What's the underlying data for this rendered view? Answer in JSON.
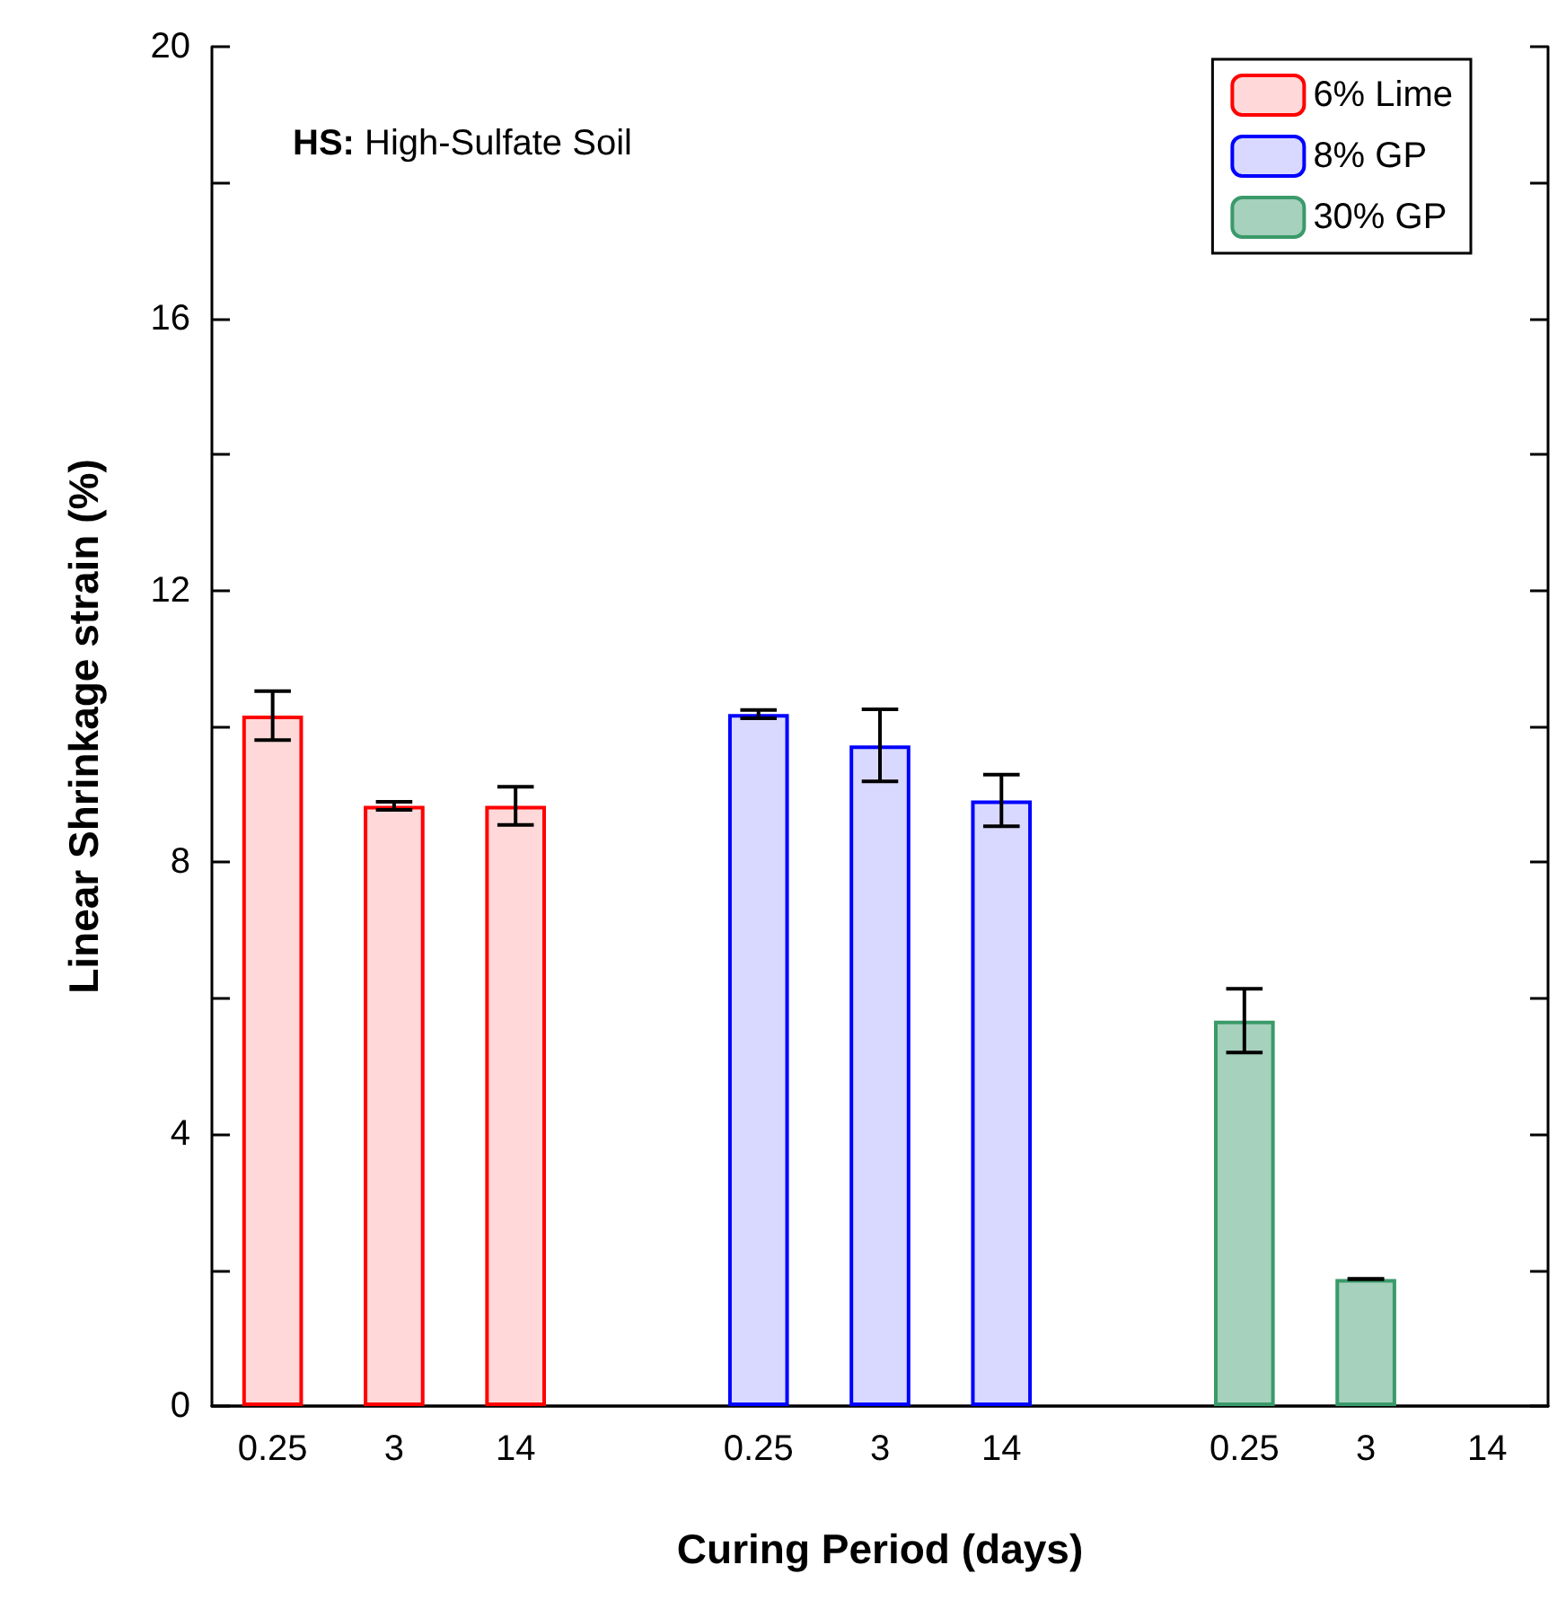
{
  "chart_data": {
    "type": "bar",
    "xlabel": "Curing Period (days)",
    "ylabel": "Linear Shrinkage strain (%)",
    "annotations": [
      "HS: High-Sulfate Soil"
    ],
    "categories": [
      "0.25",
      "3",
      "14",
      null,
      "0.25",
      "3",
      "14",
      null,
      "0.25",
      "3",
      "14"
    ],
    "series": [
      {
        "name": "6% Lime",
        "color": "#ff0000",
        "values": [
          10.16,
          8.83,
          8.83,
          null,
          null,
          null,
          null,
          null,
          null,
          null,
          null
        ],
        "errors": [
          0.36,
          0.06,
          0.28,
          null,
          null,
          null,
          null,
          null,
          null,
          null,
          null
        ]
      },
      {
        "name": "8% GP",
        "color": "#0000ff",
        "values": [
          null,
          null,
          null,
          null,
          10.18,
          9.72,
          8.91,
          null,
          null,
          null,
          null
        ],
        "errors": [
          null,
          null,
          null,
          null,
          0.06,
          0.53,
          0.38,
          null,
          null,
          null,
          null
        ]
      },
      {
        "name": "30% GP",
        "color": "#3a9a6a",
        "values": [
          null,
          null,
          null,
          null,
          null,
          null,
          null,
          null,
          5.67,
          1.87,
          null
        ],
        "errors": [
          null,
          null,
          null,
          null,
          null,
          null,
          null,
          null,
          0.47,
          0,
          null
        ]
      }
    ],
    "ylim": [
      0,
      20
    ],
    "yticks": [
      0,
      {
        "value": 2,
        "label": null
      },
      4,
      {
        "value": 6,
        "label": null
      },
      8,
      {
        "value": 10,
        "label": null
      },
      12,
      {
        "value": 14,
        "label": null
      },
      16,
      {
        "value": 18,
        "label": null
      },
      20
    ],
    "legend": "top right",
    "grid": false
  }
}
